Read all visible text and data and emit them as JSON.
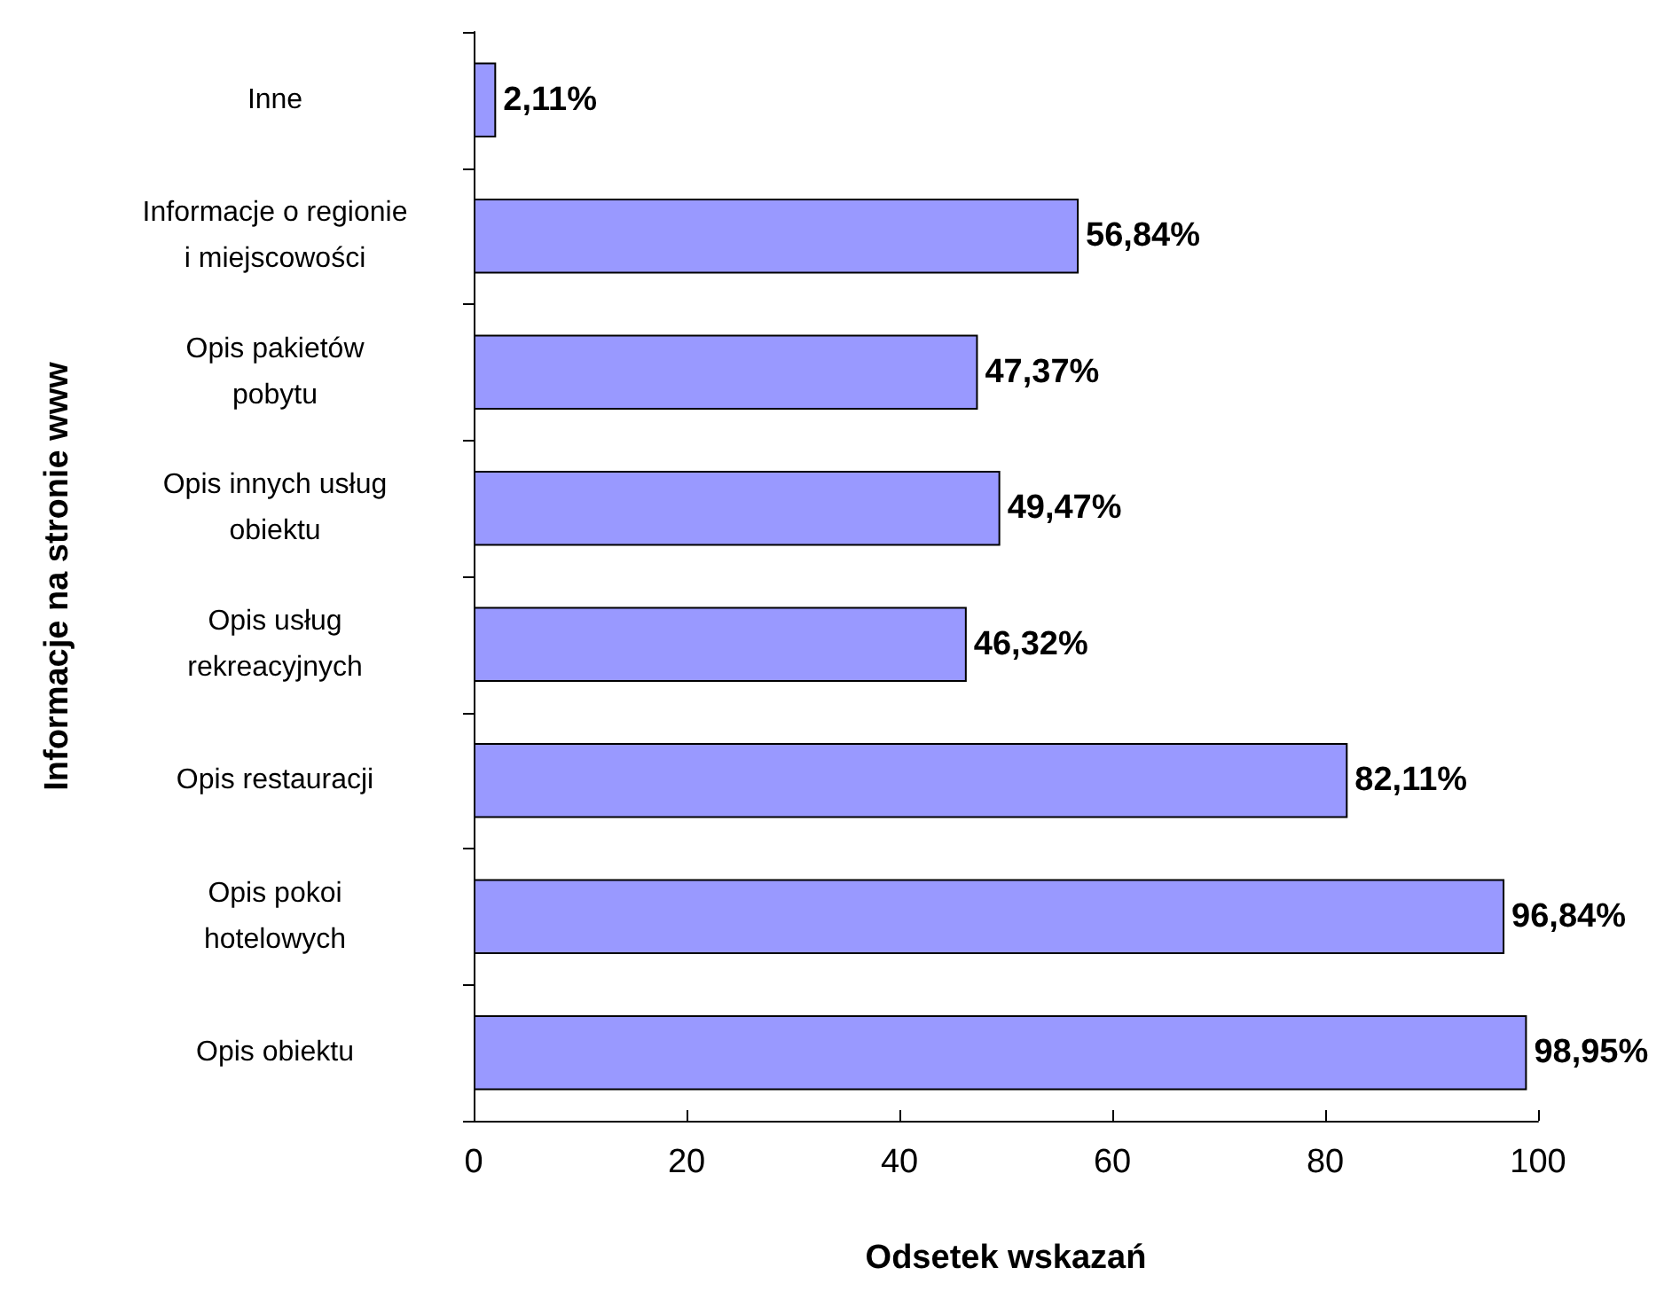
{
  "chart_data": {
    "type": "bar",
    "orientation": "horizontal",
    "xlabel": "Odsetek wskazań",
    "ylabel": "Informacje na stronie www",
    "categories": [
      "Inne",
      "Informacje o regionie\ni miejscowości",
      "Opis pakietów\npobytu",
      "Opis innych usług\nobiektu",
      "Opis usług\nrekreacyjnych",
      "Opis restauracji",
      "Opis pokoi\nhotelowych",
      "Opis obiektu"
    ],
    "values": [
      2.11,
      56.84,
      47.37,
      49.47,
      46.32,
      82.11,
      96.84,
      98.95
    ],
    "value_labels": [
      "2,11%",
      "56,84%",
      "47,37%",
      "49,47%",
      "46,32%",
      "82,11%",
      "96,84%",
      "98,95%"
    ],
    "color": "#9999ff",
    "xlim": [
      0,
      100
    ],
    "xticks": [
      0,
      20,
      40,
      60,
      80,
      100
    ],
    "grid": false
  }
}
